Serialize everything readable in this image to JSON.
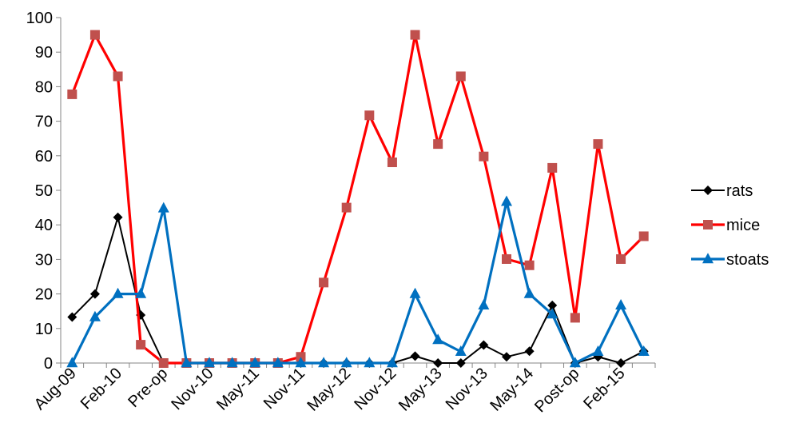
{
  "chart_data": {
    "type": "line",
    "title": "",
    "xlabel": "",
    "ylabel": "",
    "ylim": [
      0,
      100
    ],
    "y_ticks": [
      0,
      10,
      20,
      30,
      40,
      50,
      60,
      70,
      80,
      90,
      100
    ],
    "grid": false,
    "legend_position": "right",
    "categories": [
      "Aug-09",
      "",
      "Feb-10",
      "",
      "Pre-op",
      "",
      "Nov-10",
      "",
      "May-11",
      "",
      "Nov-11",
      "",
      "May-12",
      "",
      "Nov-12",
      "",
      "May-13",
      "",
      "Nov-13",
      "",
      "May-14",
      "",
      "Post-op",
      "",
      "Feb-15",
      ""
    ],
    "series": [
      {
        "name": "rats",
        "color": "#000000",
        "marker": "diamond",
        "values": [
          13.3,
          20,
          42.2,
          13.9,
          0,
          0,
          0,
          0,
          0,
          0,
          0,
          0,
          0,
          0,
          0,
          2,
          0,
          0,
          5.2,
          1.8,
          3.4,
          16.7,
          0,
          1.8,
          0,
          3.4
        ]
      },
      {
        "name": "mice",
        "color": "#ff0000",
        "marker_color": "#c0504d",
        "marker": "square",
        "values": [
          77.8,
          95,
          83,
          5.3,
          0,
          0,
          0,
          0,
          0,
          0,
          1.8,
          23.3,
          45,
          71.7,
          58.1,
          95,
          63.4,
          83,
          59.8,
          30.1,
          28.3,
          56.5,
          13.1,
          63.4,
          30.1,
          36.7
        ]
      },
      {
        "name": "stoats",
        "color": "#0070c0",
        "marker": "triangle",
        "values": [
          0,
          13.3,
          20,
          20,
          44.8,
          0,
          0,
          0,
          0,
          0,
          0,
          0,
          0,
          0,
          0,
          20,
          6.7,
          3.3,
          16.7,
          46.7,
          20,
          14.1,
          0,
          3.3,
          16.7,
          3.3
        ]
      }
    ]
  }
}
